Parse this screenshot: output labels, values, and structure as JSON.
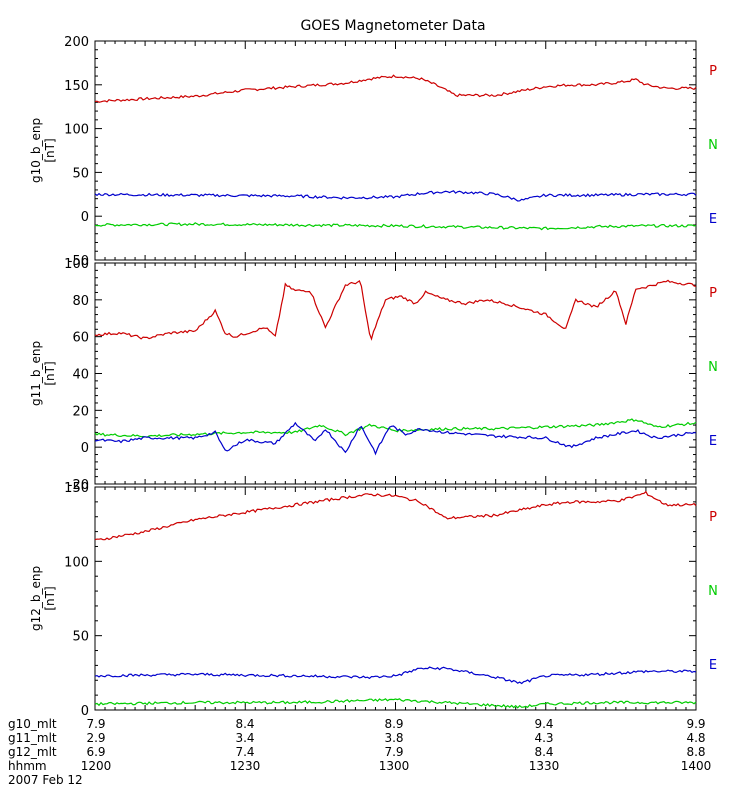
{
  "chart_data": {
    "type": "line",
    "title": "GOES Magnetometer Data",
    "x_range_minutes": [
      0,
      120
    ],
    "panels": [
      {
        "ylabel": "g10_b_enp",
        "yunit": "[nT]",
        "ylim": [
          -50,
          200
        ],
        "yticks": [
          -50,
          0,
          50,
          100,
          150,
          200
        ],
        "series": [
          {
            "name": "P",
            "color": "#cc0000",
            "x": [
              0,
              10,
              20,
              30,
              40,
              50,
              55,
              60,
              65,
              68,
              72,
              80,
              90,
              95,
              100,
              105,
              108,
              110,
              114,
              120
            ],
            "values": [
              131,
              134,
              137,
              144,
              148,
              152,
              157,
              160,
              157,
              150,
              138,
              138,
              148,
              150,
              150,
              153,
              156,
              150,
              146,
              146
            ]
          },
          {
            "name": "N",
            "color": "#00cc00",
            "x": [
              0,
              20,
              40,
              60,
              70,
              80,
              90,
              100,
              110,
              120
            ],
            "values": [
              -10,
              -9,
              -10,
              -11,
              -12,
              -13,
              -14,
              -12,
              -11,
              -11
            ]
          },
          {
            "name": "E",
            "color": "#0000cc",
            "x": [
              0,
              20,
              40,
              50,
              60,
              65,
              70,
              75,
              80,
              85,
              90,
              100,
              110,
              120
            ],
            "values": [
              25,
              24,
              23,
              21,
              22,
              26,
              28,
              27,
              25,
              18,
              24,
              24,
              25,
              25
            ]
          }
        ]
      },
      {
        "ylabel": "g11_b_enp",
        "yunit": "[nT]",
        "ylim": [
          -20,
          100
        ],
        "yticks": [
          -20,
          0,
          20,
          40,
          60,
          80,
          100
        ],
        "series": [
          {
            "name": "P",
            "color": "#cc0000",
            "x": [
              0,
              5,
              10,
              15,
              20,
              24,
              26,
              28,
              34,
              36,
              38,
              40,
              43,
              46,
              50,
              53,
              55,
              58,
              61,
              64,
              66,
              70,
              74,
              78,
              82,
              86,
              90,
              94,
              96,
              100,
              104,
              106,
              108,
              110,
              114,
              120
            ],
            "values": [
              61,
              62,
              59,
              62,
              63,
              74,
              62,
              60,
              65,
              60,
              88,
              85,
              85,
              65,
              88,
              90,
              58,
              80,
              82,
              78,
              84,
              80,
              78,
              80,
              78,
              75,
              72,
              64,
              80,
              76,
              85,
              67,
              86,
              87,
              90,
              88
            ]
          },
          {
            "name": "N",
            "color": "#00cc00",
            "x": [
              0,
              10,
              20,
              30,
              40,
              45,
              50,
              55,
              60,
              70,
              80,
              90,
              100,
              108,
              112,
              120
            ],
            "values": [
              7,
              6,
              7,
              8,
              8,
              12,
              7,
              12,
              9,
              10,
              10,
              11,
              12,
              15,
              11,
              13
            ]
          },
          {
            "name": "E",
            "color": "#0000cc",
            "x": [
              0,
              5,
              10,
              20,
              24,
              26,
              30,
              36,
              40,
              44,
              46,
              50,
              53,
              56,
              59,
              62,
              65,
              70,
              80,
              90,
              95,
              100,
              108,
              112,
              120
            ],
            "values": [
              4,
              3,
              5,
              5,
              8,
              -2,
              4,
              2,
              13,
              3,
              10,
              -3,
              12,
              -3,
              12,
              7,
              10,
              8,
              6,
              5,
              0,
              5,
              9,
              5,
              8
            ]
          }
        ]
      },
      {
        "ylabel": "g12_b_enp",
        "yunit": "[nT]",
        "ylim": [
          0,
          150
        ],
        "yticks": [
          0,
          50,
          100,
          150
        ],
        "series": [
          {
            "name": "P",
            "color": "#cc0000",
            "x": [
              0,
              10,
              20,
              30,
              40,
              50,
              55,
              60,
              65,
              70,
              80,
              90,
              95,
              100,
              105,
              110,
              114,
              120
            ],
            "values": [
              114,
              120,
              128,
              133,
              138,
              143,
              145,
              144,
              140,
              129,
              131,
              138,
              140,
              140,
              141,
              146,
              138,
              138
            ]
          },
          {
            "name": "N",
            "color": "#00cc00",
            "x": [
              0,
              20,
              40,
              50,
              60,
              70,
              80,
              85,
              90,
              100,
              110,
              120
            ],
            "values": [
              4,
              5,
              5,
              6,
              7,
              5,
              3,
              2,
              4,
              5,
              5,
              5
            ]
          },
          {
            "name": "E",
            "color": "#0000cc",
            "x": [
              0,
              20,
              40,
              55,
              60,
              65,
              70,
              80,
              85,
              90,
              100,
              110,
              120
            ],
            "values": [
              23,
              24,
              23,
              22,
              23,
              28,
              28,
              22,
              18,
              23,
              24,
              26,
              26
            ]
          }
        ]
      }
    ],
    "footer": {
      "rows": [
        {
          "label": "g10_mlt",
          "values": [
            "7.9",
            "8.4",
            "8.9",
            "9.4",
            "9.9"
          ]
        },
        {
          "label": "g11_mlt",
          "values": [
            "2.9",
            "3.4",
            "3.8",
            "4.3",
            "4.8"
          ]
        },
        {
          "label": "g12_mlt",
          "values": [
            "6.9",
            "7.4",
            "7.9",
            "8.4",
            "8.8"
          ]
        },
        {
          "label": "hhmm",
          "values": [
            "1200",
            "1230",
            "1300",
            "1330",
            "1400"
          ]
        }
      ],
      "date": "2007 Feb 12"
    }
  }
}
